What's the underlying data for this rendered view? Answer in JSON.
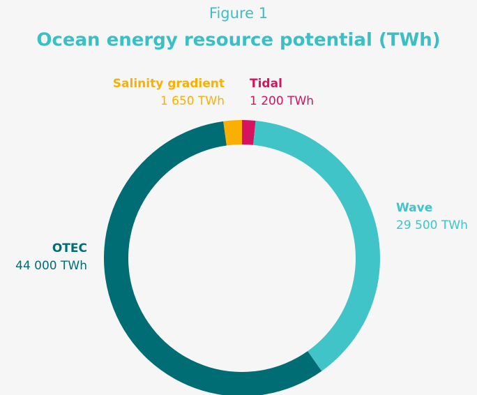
{
  "chart_data": {
    "type": "donut",
    "subtitle": "Figure 1",
    "title": "Ocean energy resource potential (TWh)",
    "categories": [
      "Tidal",
      "Wave",
      "OTEC",
      "Salinity gradient"
    ],
    "values": [
      1200,
      29500,
      44000,
      1650
    ],
    "value_labels": [
      "1 200 TWh",
      "29 500 TWh",
      "44 000 TWh",
      "1 650 TWh"
    ],
    "colors": [
      "#d5135f",
      "#40c4c8",
      "#006d75",
      "#f9b000"
    ]
  }
}
